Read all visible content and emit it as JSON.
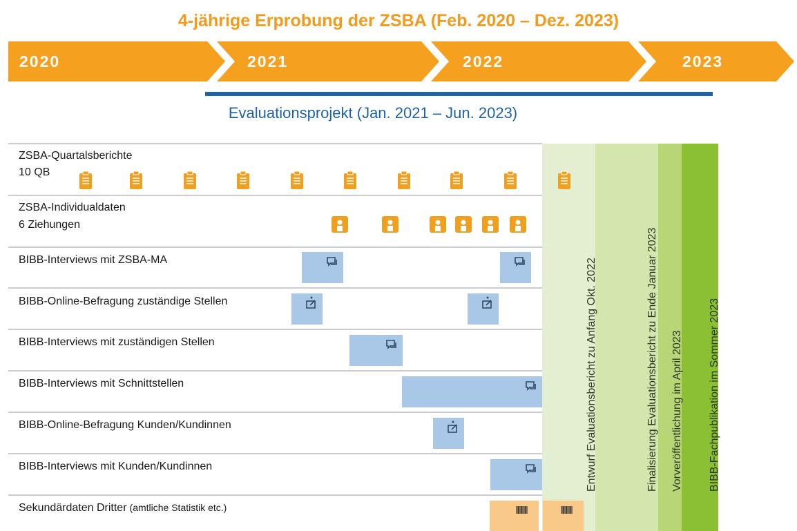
{
  "header": {
    "title": "4-jährige Erprobung der ZSBA (Feb. 2020 – Dez. 2023)",
    "years": [
      "2020",
      "2021",
      "2022",
      "2023"
    ],
    "project": "Evaluationsprojekt (Jan. 2021 – Jun. 2023)"
  },
  "rows": [
    {
      "label": "ZSBA-Quartalsberichte",
      "sub": "10 QB"
    },
    {
      "label": "ZSBA-Individualdaten",
      "sub": "6 Ziehungen"
    },
    {
      "label": "BIBB-Interviews mit ZSBA-MA"
    },
    {
      "label": "BIBB-Online-Befragung zuständige Stellen"
    },
    {
      "label": "BIBB-Interviews mit zuständigen Stellen"
    },
    {
      "label": "BIBB-Interviews mit Schnittstellen"
    },
    {
      "label": "BIBB-Online-Befragung Kunden/Kundinnen"
    },
    {
      "label": "BIBB-Interviews mit Kunden/Kundinnen"
    },
    {
      "label": "Sekundärdaten Dritter",
      "note": "(amtliche Statistik etc.)"
    }
  ],
  "milestones": [
    "Entwurf Evaluationsbericht zu Anfang Okt. 2022",
    "Finalisierung Evaluationsbericht zu Ende Januar 2023",
    "Vorveröffentlichung im April 2023",
    "BIBB-Fachpublikation im Sommer 2023"
  ]
}
